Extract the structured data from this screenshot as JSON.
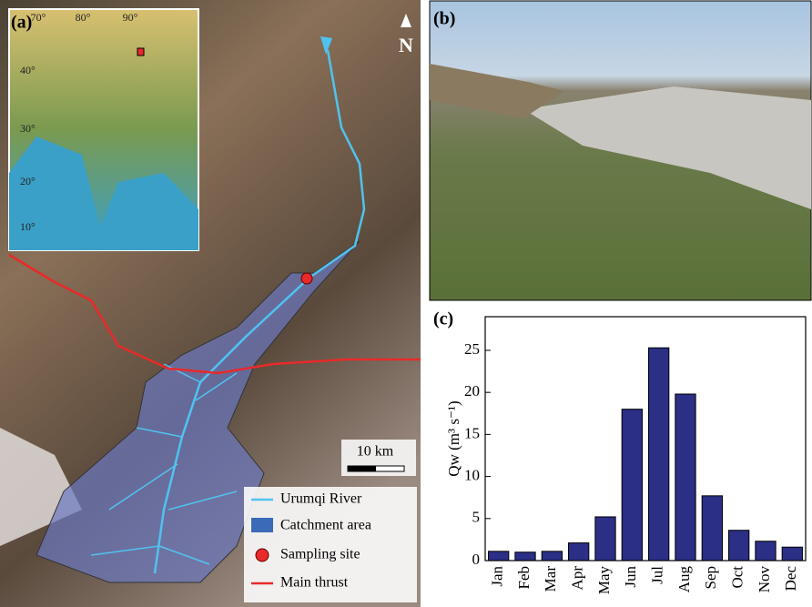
{
  "map": {
    "panel_label": "(a)",
    "inset_lon_labels": [
      "70°",
      "80°",
      "90°"
    ],
    "inset_lat_labels": [
      "40°",
      "30°",
      "20°",
      "10°"
    ],
    "north": "N",
    "scale_bar": "10 km",
    "legend": [
      "Urumqi River",
      "Catchment area",
      "Sampling site",
      "Main thrust"
    ]
  },
  "photo": {
    "panel_label": "(b)"
  },
  "chart_data": {
    "type": "bar",
    "panel_label": "(c)",
    "y_label": "Qw (m³ s⁻¹)",
    "categories": [
      "Jan",
      "Feb",
      "Mar",
      "Apr",
      "May",
      "Jun",
      "Jul",
      "Aug",
      "Sep",
      "Oct",
      "Nov",
      "Dec"
    ],
    "values": [
      1.1,
      1.0,
      1.1,
      2.1,
      5.2,
      18.0,
      25.3,
      19.8,
      7.7,
      3.6,
      2.3,
      1.6
    ],
    "color": "#2b2f85",
    "ylim": [
      0,
      29
    ],
    "yticks": [
      0,
      5,
      10,
      15,
      20,
      25
    ]
  }
}
